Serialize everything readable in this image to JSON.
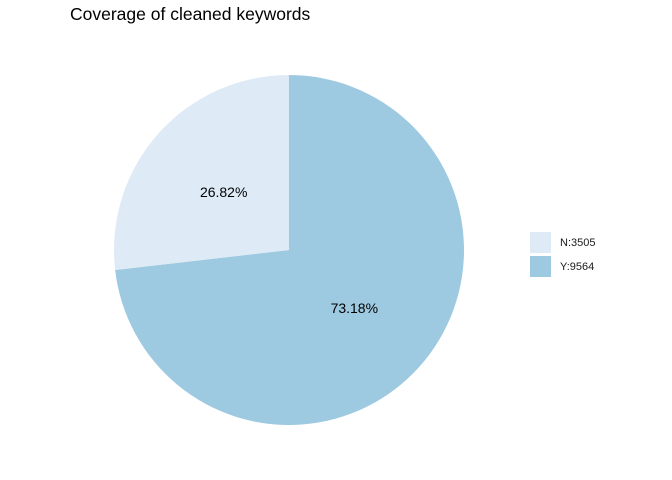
{
  "chart_data": {
    "type": "pie",
    "title": "Coverage of cleaned keywords",
    "slices": [
      {
        "name": "N:3505",
        "value": 3505,
        "label": "26.82%",
        "color": "#deebf7"
      },
      {
        "name": "Y:9564",
        "value": 9564,
        "label": "73.18%",
        "color": "#9ecae1"
      }
    ],
    "legend_position": "right"
  }
}
